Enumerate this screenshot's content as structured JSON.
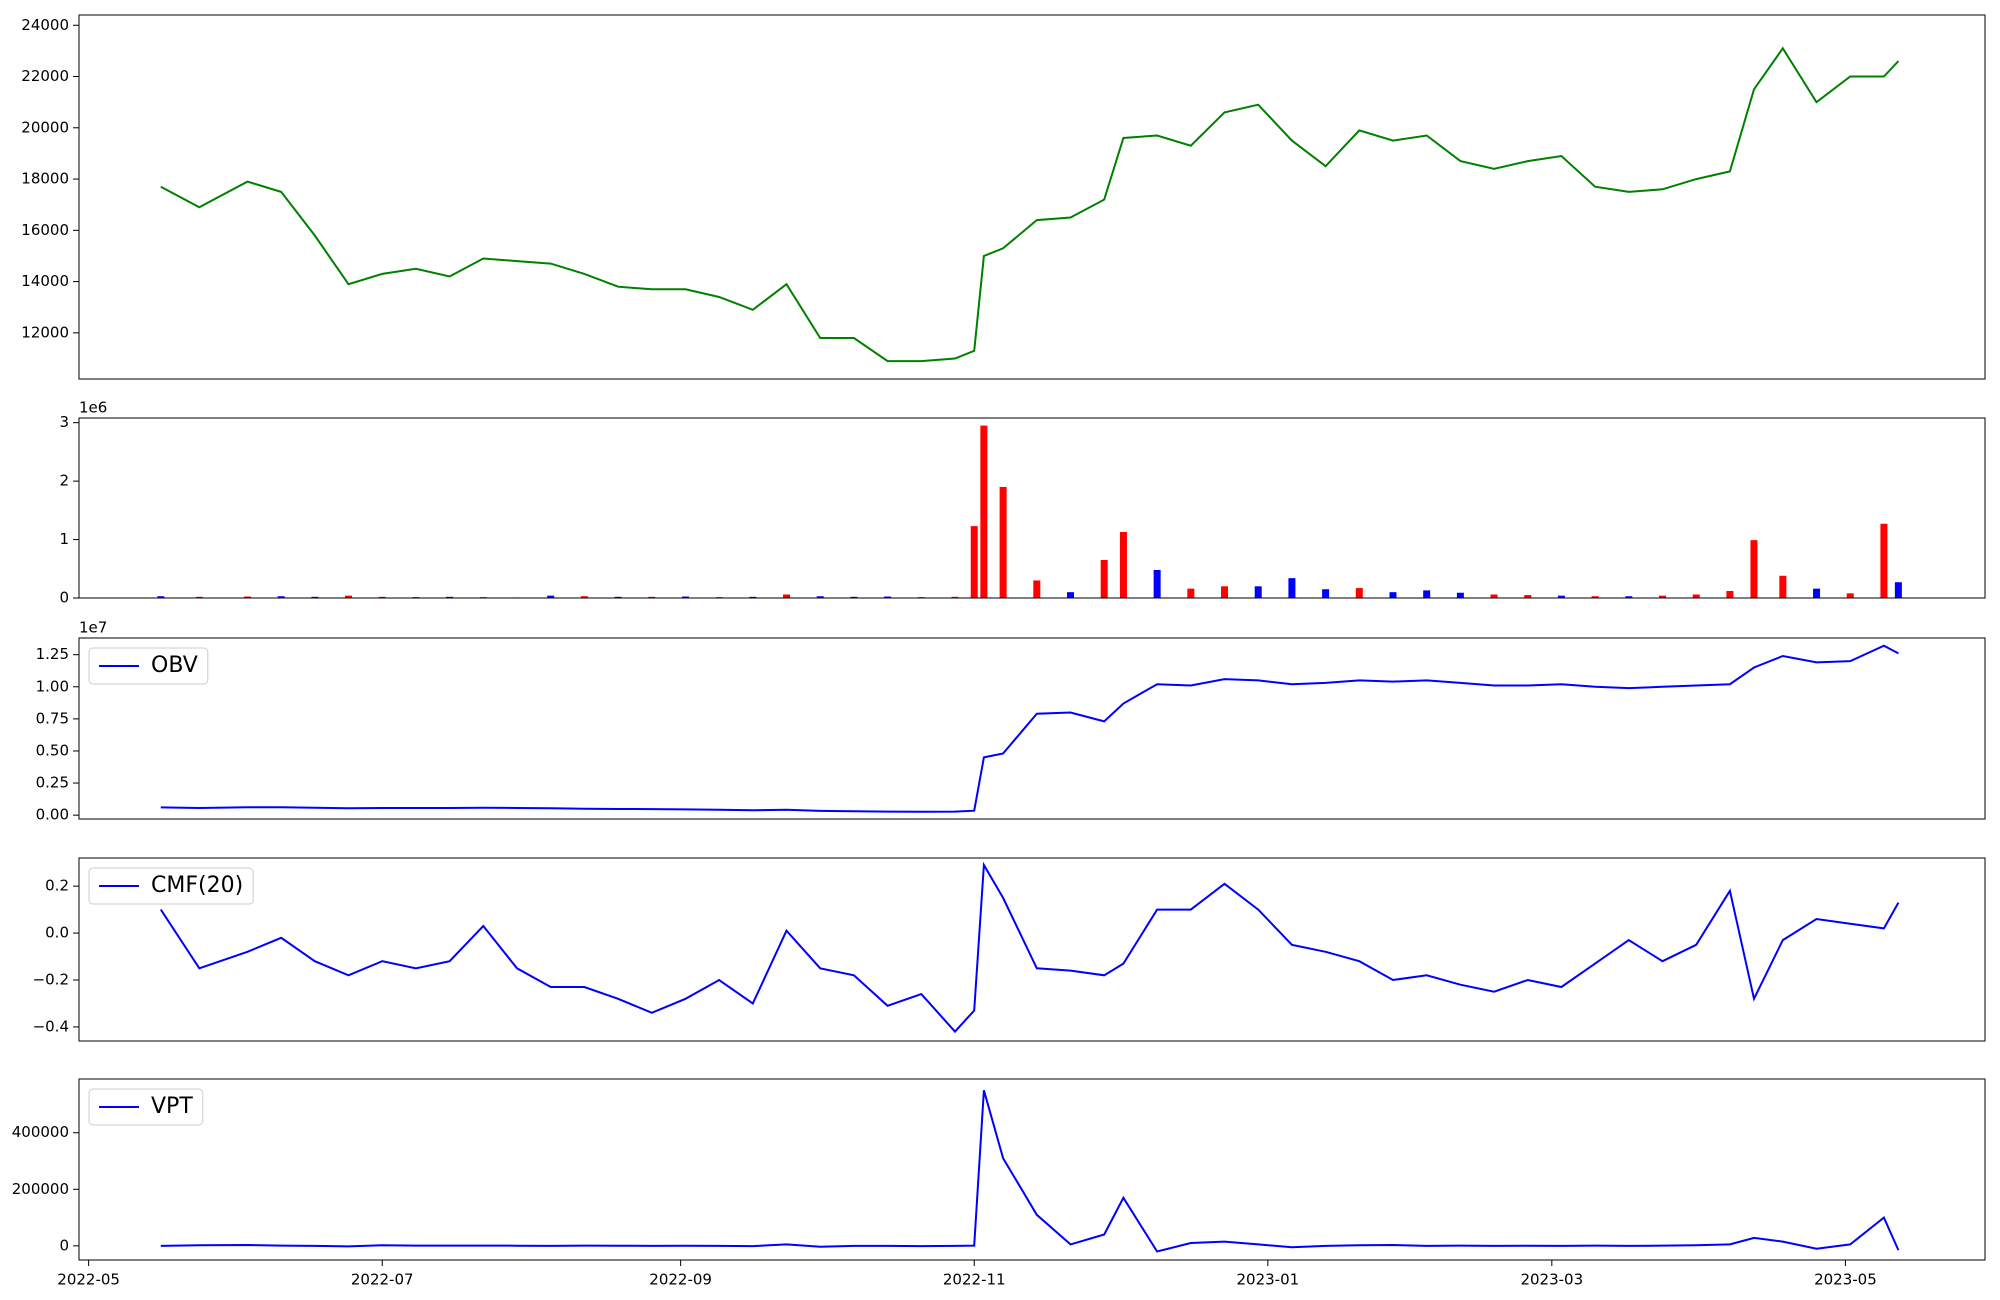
{
  "chart_data": [
    {
      "type": "line",
      "xlim": [
        "2022-04-29",
        "2023-05-30"
      ],
      "x": [
        "2022-05-16",
        "2022-05-24",
        "2022-06-03",
        "2022-06-10",
        "2022-06-17",
        "2022-06-24",
        "2022-07-01",
        "2022-07-08",
        "2022-07-15",
        "2022-07-22",
        "2022-07-29",
        "2022-08-05",
        "2022-08-12",
        "2022-08-19",
        "2022-08-26",
        "2022-09-02",
        "2022-09-09",
        "2022-09-16",
        "2022-09-23",
        "2022-09-30",
        "2022-10-07",
        "2022-10-14",
        "2022-10-21",
        "2022-10-28",
        "2022-11-01",
        "2022-11-03",
        "2022-11-07",
        "2022-11-14",
        "2022-11-21",
        "2022-11-28",
        "2022-12-02",
        "2022-12-09",
        "2022-12-16",
        "2022-12-23",
        "2022-12-30",
        "2023-01-06",
        "2023-01-13",
        "2023-01-20",
        "2023-01-27",
        "2023-02-03",
        "2023-02-10",
        "2023-02-17",
        "2023-02-24",
        "2023-03-03",
        "2023-03-10",
        "2023-03-17",
        "2023-03-24",
        "2023-03-31",
        "2023-04-07",
        "2023-04-12",
        "2023-04-18",
        "2023-04-25",
        "2023-05-02",
        "2023-05-09",
        "2023-05-12"
      ],
      "ylim": [
        10200,
        24400
      ],
      "yticks": [
        12000,
        14000,
        16000,
        18000,
        20000,
        22000,
        24000
      ],
      "series": [
        {
          "color": "#008000",
          "values": [
            17700,
            16900,
            17900,
            17500,
            15800,
            13900,
            14300,
            14500,
            14200,
            14900,
            14800,
            14700,
            14300,
            13800,
            13700,
            13700,
            13400,
            12900,
            13900,
            11800,
            11800,
            10900,
            10900,
            11000,
            11300,
            15000,
            15300,
            16400,
            16500,
            17200,
            19600,
            19700,
            19300,
            20600,
            20900,
            19500,
            18500,
            19900,
            19500,
            19700,
            18700,
            18400,
            18700,
            18900,
            17700,
            17500,
            17600,
            18000,
            18300,
            21500,
            23100,
            21000,
            22000,
            22000,
            22600
          ]
        }
      ]
    },
    {
      "type": "bar",
      "xlim": [
        "2022-04-29",
        "2023-05-30"
      ],
      "x": [
        "2022-05-16",
        "2022-05-24",
        "2022-06-03",
        "2022-06-10",
        "2022-06-17",
        "2022-06-24",
        "2022-07-01",
        "2022-07-08",
        "2022-07-15",
        "2022-07-22",
        "2022-07-29",
        "2022-08-05",
        "2022-08-12",
        "2022-08-19",
        "2022-08-26",
        "2022-09-02",
        "2022-09-09",
        "2022-09-16",
        "2022-09-23",
        "2022-09-30",
        "2022-10-07",
        "2022-10-14",
        "2022-10-21",
        "2022-10-28",
        "2022-11-01",
        "2022-11-03",
        "2022-11-07",
        "2022-11-14",
        "2022-11-21",
        "2022-11-28",
        "2022-12-02",
        "2022-12-09",
        "2022-12-16",
        "2022-12-23",
        "2022-12-30",
        "2023-01-06",
        "2023-01-13",
        "2023-01-20",
        "2023-01-27",
        "2023-02-03",
        "2023-02-10",
        "2023-02-17",
        "2023-02-24",
        "2023-03-03",
        "2023-03-10",
        "2023-03-17",
        "2023-03-24",
        "2023-03-31",
        "2023-04-07",
        "2023-04-12",
        "2023-04-18",
        "2023-04-25",
        "2023-05-02",
        "2023-05-09",
        "2023-05-12"
      ],
      "ylim": [
        0,
        3080000
      ],
      "offset_label": "1e6",
      "yticks": [
        {
          "value": 0,
          "label": "0"
        },
        {
          "value": 1000000,
          "label": "1"
        },
        {
          "value": 2000000,
          "label": "2"
        },
        {
          "value": 3000000,
          "label": "3"
        }
      ],
      "values": [
        30000,
        20000,
        25000,
        30000,
        20000,
        40000,
        20000,
        15000,
        20000,
        15000,
        10000,
        40000,
        30000,
        20000,
        20000,
        25000,
        15000,
        20000,
        60000,
        30000,
        20000,
        25000,
        15000,
        20000,
        1230000,
        2950000,
        1900000,
        300000,
        100000,
        650000,
        1130000,
        480000,
        160000,
        200000,
        200000,
        340000,
        150000,
        170000,
        100000,
        130000,
        90000,
        60000,
        50000,
        40000,
        30000,
        30000,
        40000,
        60000,
        120000,
        990000,
        380000,
        160000,
        80000,
        1270000,
        270000
      ],
      "colors": [
        "blue",
        "red",
        "red",
        "blue",
        "blue",
        "red",
        "red",
        "blue",
        "blue",
        "red",
        "red",
        "blue",
        "red",
        "blue",
        "red",
        "blue",
        "red",
        "blue",
        "red",
        "blue",
        "blue",
        "blue",
        "red",
        "red",
        "red",
        "red",
        "red",
        "red",
        "blue",
        "red",
        "red",
        "blue",
        "red",
        "red",
        "blue",
        "blue",
        "blue",
        "red",
        "blue",
        "blue",
        "blue",
        "red",
        "red",
        "blue",
        "red",
        "blue",
        "red",
        "red",
        "red",
        "red",
        "red",
        "blue",
        "red",
        "red",
        "blue"
      ]
    },
    {
      "type": "line",
      "xlim": [
        "2022-04-29",
        "2023-05-30"
      ],
      "x": [
        "2022-05-16",
        "2022-05-24",
        "2022-06-03",
        "2022-06-10",
        "2022-06-17",
        "2022-06-24",
        "2022-07-01",
        "2022-07-08",
        "2022-07-15",
        "2022-07-22",
        "2022-07-29",
        "2022-08-05",
        "2022-08-12",
        "2022-08-19",
        "2022-08-26",
        "2022-09-02",
        "2022-09-09",
        "2022-09-16",
        "2022-09-23",
        "2022-09-30",
        "2022-10-07",
        "2022-10-14",
        "2022-10-21",
        "2022-10-28",
        "2022-11-01",
        "2022-11-03",
        "2022-11-07",
        "2022-11-14",
        "2022-11-21",
        "2022-11-28",
        "2022-12-02",
        "2022-12-09",
        "2022-12-16",
        "2022-12-23",
        "2022-12-30",
        "2023-01-06",
        "2023-01-13",
        "2023-01-20",
        "2023-01-27",
        "2023-02-03",
        "2023-02-10",
        "2023-02-17",
        "2023-02-24",
        "2023-03-03",
        "2023-03-10",
        "2023-03-17",
        "2023-03-24",
        "2023-03-31",
        "2023-04-07",
        "2023-04-12",
        "2023-04-18",
        "2023-04-25",
        "2023-05-02",
        "2023-05-09",
        "2023-05-12"
      ],
      "ylim": [
        -300000,
        13800000
      ],
      "offset_label": "1e7",
      "legend": "upper left",
      "yticks": [
        {
          "value": 0,
          "label": "0.00"
        },
        {
          "value": 2500000,
          "label": "0.25"
        },
        {
          "value": 5000000,
          "label": "0.50"
        },
        {
          "value": 7500000,
          "label": "0.75"
        },
        {
          "value": 10000000,
          "label": "1.00"
        },
        {
          "value": 12500000,
          "label": "1.25"
        }
      ],
      "series": [
        {
          "name": "OBV",
          "color": "#0000ff",
          "values": [
            600000,
            560000,
            620000,
            620000,
            580000,
            540000,
            560000,
            560000,
            560000,
            580000,
            560000,
            540000,
            500000,
            480000,
            470000,
            450000,
            420000,
            380000,
            420000,
            330000,
            300000,
            280000,
            270000,
            280000,
            350000,
            4500000,
            4800000,
            7900000,
            8000000,
            7300000,
            8700000,
            10200000,
            10100000,
            10600000,
            10500000,
            10200000,
            10300000,
            10500000,
            10400000,
            10500000,
            10300000,
            10100000,
            10100000,
            10200000,
            10000000,
            9900000,
            10000000,
            10100000,
            10200000,
            11500000,
            12400000,
            11900000,
            12000000,
            13200000,
            12600000
          ]
        }
      ]
    },
    {
      "type": "line",
      "xlim": [
        "2022-04-29",
        "2023-05-30"
      ],
      "x": [
        "2022-05-16",
        "2022-05-24",
        "2022-06-03",
        "2022-06-10",
        "2022-06-17",
        "2022-06-24",
        "2022-07-01",
        "2022-07-08",
        "2022-07-15",
        "2022-07-22",
        "2022-07-29",
        "2022-08-05",
        "2022-08-12",
        "2022-08-19",
        "2022-08-26",
        "2022-09-02",
        "2022-09-09",
        "2022-09-16",
        "2022-09-23",
        "2022-09-30",
        "2022-10-07",
        "2022-10-14",
        "2022-10-21",
        "2022-10-28",
        "2022-11-01",
        "2022-11-03",
        "2022-11-07",
        "2022-11-14",
        "2022-11-21",
        "2022-11-28",
        "2022-12-02",
        "2022-12-09",
        "2022-12-16",
        "2022-12-23",
        "2022-12-30",
        "2023-01-06",
        "2023-01-13",
        "2023-01-20",
        "2023-01-27",
        "2023-02-03",
        "2023-02-10",
        "2023-02-17",
        "2023-02-24",
        "2023-03-03",
        "2023-03-10",
        "2023-03-17",
        "2023-03-24",
        "2023-03-31",
        "2023-04-07",
        "2023-04-12",
        "2023-04-18",
        "2023-04-25",
        "2023-05-02",
        "2023-05-09",
        "2023-05-12"
      ],
      "ylim": [
        -0.46,
        0.32
      ],
      "legend": "upper left",
      "yticks": [
        {
          "value": -0.4,
          "label": "−0.4"
        },
        {
          "value": -0.2,
          "label": "−0.2"
        },
        {
          "value": 0,
          "label": "0.0"
        },
        0.2
      ],
      "series": [
        {
          "name": "CMF(20)",
          "color": "#0000ff",
          "values": [
            0.1,
            -0.15,
            -0.08,
            -0.02,
            -0.12,
            -0.18,
            -0.12,
            -0.15,
            -0.12,
            0.03,
            -0.15,
            -0.23,
            -0.23,
            -0.28,
            -0.34,
            -0.28,
            -0.2,
            -0.3,
            0.01,
            -0.15,
            -0.18,
            -0.31,
            -0.26,
            -0.42,
            -0.33,
            0.29,
            0.15,
            -0.15,
            -0.16,
            -0.18,
            -0.13,
            0.1,
            0.1,
            0.21,
            0.1,
            -0.05,
            -0.08,
            -0.12,
            -0.2,
            -0.18,
            -0.22,
            -0.25,
            -0.2,
            -0.23,
            -0.13,
            -0.03,
            -0.12,
            -0.05,
            0.18,
            -0.28,
            -0.03,
            0.06,
            0.04,
            0.02,
            0.13
          ]
        }
      ]
    },
    {
      "type": "line",
      "xlim": [
        "2022-04-29",
        "2023-05-30"
      ],
      "x": [
        "2022-05-16",
        "2022-05-24",
        "2022-06-03",
        "2022-06-10",
        "2022-06-17",
        "2022-06-24",
        "2022-07-01",
        "2022-07-08",
        "2022-07-15",
        "2022-07-22",
        "2022-07-29",
        "2022-08-05",
        "2022-08-12",
        "2022-08-19",
        "2022-08-26",
        "2022-09-02",
        "2022-09-09",
        "2022-09-16",
        "2022-09-23",
        "2022-09-30",
        "2022-10-07",
        "2022-10-14",
        "2022-10-21",
        "2022-10-28",
        "2022-11-01",
        "2022-11-03",
        "2022-11-07",
        "2022-11-14",
        "2022-11-21",
        "2022-11-28",
        "2022-12-02",
        "2022-12-09",
        "2022-12-16",
        "2022-12-23",
        "2022-12-30",
        "2023-01-06",
        "2023-01-13",
        "2023-01-20",
        "2023-01-27",
        "2023-02-03",
        "2023-02-10",
        "2023-02-17",
        "2023-02-24",
        "2023-03-03",
        "2023-03-10",
        "2023-03-17",
        "2023-03-24",
        "2023-03-31",
        "2023-04-07",
        "2023-04-12",
        "2023-04-18",
        "2023-04-25",
        "2023-05-02",
        "2023-05-09",
        "2023-05-12"
      ],
      "ylim": [
        -50000,
        590000
      ],
      "legend": "upper left",
      "yticks": [
        0,
        200000,
        400000
      ],
      "xticks": [
        {
          "value": "2022-05-01",
          "label": "2022-05"
        },
        {
          "value": "2022-07-01",
          "label": "2022-07"
        },
        {
          "value": "2022-09-01",
          "label": "2022-09"
        },
        {
          "value": "2022-11-01",
          "label": "2022-11"
        },
        {
          "value": "2023-01-01",
          "label": "2023-01"
        },
        {
          "value": "2023-03-01",
          "label": "2023-03"
        },
        {
          "value": "2023-05-01",
          "label": "2023-05"
        }
      ],
      "series": [
        {
          "name": "VPT",
          "color": "#0000ff",
          "values": [
            0,
            2000,
            3000,
            1000,
            0,
            -2000,
            2000,
            1000,
            1000,
            1000,
            500,
            0,
            1000,
            500,
            0,
            500,
            0,
            -1000,
            5000,
            -3000,
            0,
            0,
            -1000,
            0,
            1000,
            550000,
            310000,
            110000,
            5000,
            40000,
            170000,
            -20000,
            10000,
            15000,
            5000,
            -5000,
            0,
            2000,
            3000,
            0,
            1000,
            0,
            500,
            0,
            1000,
            0,
            1000,
            2000,
            5000,
            28000,
            15000,
            -10000,
            5000,
            100000,
            -15000
          ]
        }
      ]
    }
  ]
}
